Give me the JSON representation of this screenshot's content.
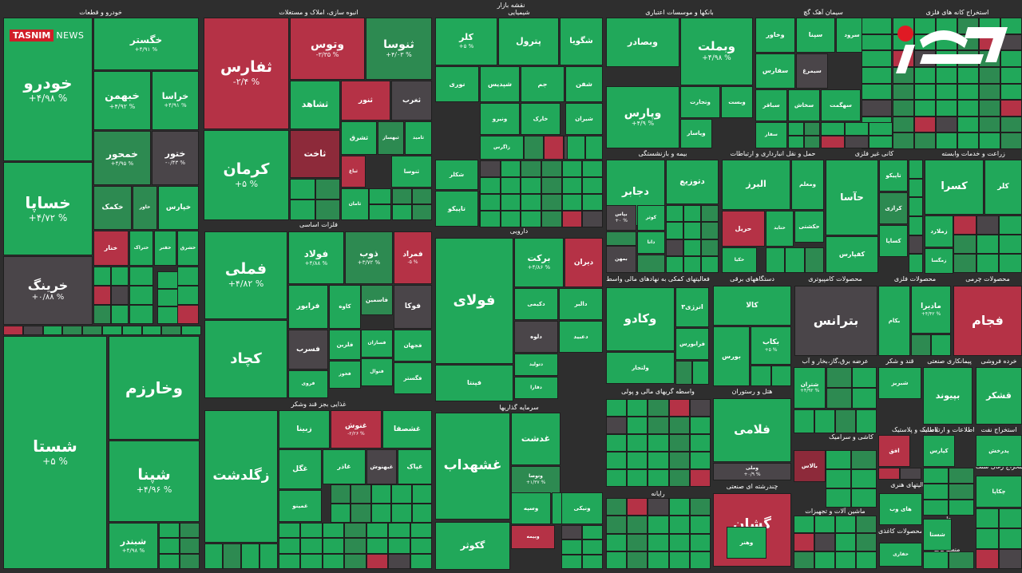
{
  "page_title": "نقشه بازار",
  "brand": {
    "tasnim_a": "TASNIM",
    "tasnim_b": "NEWS",
    "rokna": "رکنا"
  },
  "colors": {
    "green": "#21a85a",
    "green_dark": "#2d8a51",
    "green_light": "#2fc46a",
    "red": "#b53246",
    "red_dark": "#8d2a3a",
    "gray": "#4a4549",
    "bg": "#2e2e2e"
  },
  "chart_data": {
    "type": "treemap",
    "sectors": [
      {
        "name": "خودرو و قطعات"
      },
      {
        "name": "انبوه سازی، املاک و مستغلات"
      },
      {
        "name": "شیمیایی"
      },
      {
        "name": "بانکها و موسسات اعتباری"
      },
      {
        "name": "سیمان آهک گچ"
      },
      {
        "name": "استخراج کانه های فلزی"
      },
      {
        "name": "فرآورده های نفتی"
      },
      {
        "name": "فلزات اساسی"
      },
      {
        "name": "دارویی"
      },
      {
        "name": "بیمه و بازنشستگی"
      },
      {
        "name": "حمل و نقل انبارداری و ارتباطات"
      },
      {
        "name": "کانی غیر فلزی"
      },
      {
        "name": "زراعت و خدمات وابسته"
      },
      {
        "name": "فعالیتهای کمکی به نهادهای مالی واسط"
      },
      {
        "name": "دستگاههای برقی"
      },
      {
        "name": "محصولات کامپیوتری"
      },
      {
        "name": "محصولات فلزی"
      },
      {
        "name": "محصولات چرمی"
      },
      {
        "name": "غذایی بجز قند وشکر"
      },
      {
        "name": "سرمایه گذاریها"
      },
      {
        "name": "واسطه گریهای مالی و پولی"
      },
      {
        "name": "هتل و رستوران"
      },
      {
        "name": "عرضه برق،گاز،بخار و آب"
      },
      {
        "name": "قند و شکر"
      },
      {
        "name": "پیمانکاری صنعتی"
      },
      {
        "name": "خرده فروشی"
      },
      {
        "name": "کاشی و سرامیک"
      },
      {
        "name": "لاستیک و پلاستیک"
      },
      {
        "name": "اطلاعات و ارتباطات"
      },
      {
        "name": "استخراج نفت"
      },
      {
        "name": "رایانه"
      },
      {
        "name": "چندرشته ای صنعتی"
      },
      {
        "name": "ماشین آلات و تجهیزات"
      },
      {
        "name": "فعالیتهای هنری"
      },
      {
        "name": "محصولات کاغذی"
      },
      {
        "name": "منسوجات"
      },
      {
        "name": "استخراج زغال سنگ"
      },
      {
        "name": "سایر"
      },
      {
        "name": "چاپ"
      },
      {
        "name": "فنی و"
      },
      {
        "name": "سایر"
      }
    ],
    "stocks": [
      {
        "symbol": "خودرو",
        "change": "+۴/۹۸ %",
        "color": "green"
      },
      {
        "symbol": "خساپا",
        "change": "+۴/۷۲ %",
        "color": "green"
      },
      {
        "symbol": "خرینگ",
        "change": "+۰/۸۸ %",
        "color": "gray"
      },
      {
        "symbol": "خگستر",
        "change": "+۴/۹۱ %",
        "color": "green"
      },
      {
        "symbol": "خبهمن",
        "change": "+۴/۹۲ %",
        "color": "green"
      },
      {
        "symbol": "خراسا",
        "change": "+۴/۹۱ %",
        "color": "green"
      },
      {
        "symbol": "خمحور",
        "change": "+۴/۹۵ %",
        "color": "green_dark"
      },
      {
        "symbol": "ختور",
        "change": "-۰/۴۳ %",
        "color": "gray"
      },
      {
        "symbol": "خکمک",
        "change": "",
        "color": "green_dark"
      },
      {
        "symbol": "خاور",
        "change": "",
        "color": "green_dark"
      },
      {
        "symbol": "خپارس",
        "change": "",
        "color": "green"
      },
      {
        "symbol": "خنار",
        "change": "",
        "color": "red"
      },
      {
        "symbol": "ختراک",
        "change": "",
        "color": "green"
      },
      {
        "symbol": "خفنر",
        "change": "",
        "color": "green"
      },
      {
        "symbol": "خشرق",
        "change": "",
        "color": "green"
      },
      {
        "symbol": "ثفارس",
        "change": "-۲/۴ %",
        "color": "red"
      },
      {
        "symbol": "کرمان",
        "change": "+۵ %",
        "color": "green"
      },
      {
        "symbol": "وتوس",
        "change": "-۳/۳۵ %",
        "color": "red"
      },
      {
        "symbol": "ثنوسا",
        "change": "+۴/۰۳ %",
        "color": "green_dark"
      },
      {
        "symbol": "ثشاهد",
        "change": "",
        "color": "green"
      },
      {
        "symbol": "ثنور",
        "change": "",
        "color": "red"
      },
      {
        "symbol": "ثغرب",
        "change": "",
        "color": "gray"
      },
      {
        "symbol": "ثشرق",
        "change": "",
        "color": "green"
      },
      {
        "symbol": "ثاخت",
        "change": "",
        "color": "red_dark"
      },
      {
        "symbol": "ثبهساز",
        "change": "",
        "color": "green_dark"
      },
      {
        "symbol": "ثامید",
        "change": "",
        "color": "green"
      },
      {
        "symbol": "ثنوسا",
        "change": "",
        "color": "green"
      },
      {
        "symbol": "ثباغ",
        "change": "",
        "color": "red"
      },
      {
        "symbol": "ثامان",
        "change": "",
        "color": "green"
      },
      {
        "symbol": "کلر",
        "change": "+۵ %",
        "color": "green"
      },
      {
        "symbol": "پترول",
        "change": "",
        "color": "green"
      },
      {
        "symbol": "شگویا",
        "change": "",
        "color": "green"
      },
      {
        "symbol": "نوری",
        "change": "",
        "color": "green"
      },
      {
        "symbol": "شپدیس",
        "change": "",
        "color": "green"
      },
      {
        "symbol": "جم",
        "change": "",
        "color": "green"
      },
      {
        "symbol": "شفن",
        "change": "",
        "color": "green"
      },
      {
        "symbol": "ونیرو",
        "change": "",
        "color": "green"
      },
      {
        "symbol": "خارک",
        "change": "",
        "color": "green"
      },
      {
        "symbol": "شیران",
        "change": "",
        "color": "green"
      },
      {
        "symbol": "زاگرس",
        "change": "",
        "color": "green"
      },
      {
        "symbol": "شاراک",
        "change": "",
        "color": "green"
      },
      {
        "symbol": "شکلر",
        "change": "",
        "color": "green"
      },
      {
        "symbol": "تاپیکو",
        "change": "",
        "color": "green"
      },
      {
        "symbol": "پارسان",
        "change": "",
        "color": "green"
      },
      {
        "symbol": "وبصادر",
        "change": "",
        "color": "green"
      },
      {
        "symbol": "وبملت",
        "change": "+۴/۹۸ %",
        "color": "green"
      },
      {
        "symbol": "وپارس",
        "change": "+۴/۹ %",
        "color": "green"
      },
      {
        "symbol": "وتجارت",
        "change": "",
        "color": "green"
      },
      {
        "symbol": "وبست",
        "change": "",
        "color": "green"
      },
      {
        "symbol": "وپاسار",
        "change": "",
        "color": "green"
      },
      {
        "symbol": "وخاور",
        "change": "",
        "color": "green"
      },
      {
        "symbol": "سپنا",
        "change": "",
        "color": "green"
      },
      {
        "symbol": "سرود",
        "change": "",
        "color": "green"
      },
      {
        "symbol": "سفارس",
        "change": "",
        "color": "green"
      },
      {
        "symbol": "سیمرغ",
        "change": "",
        "color": "gray"
      },
      {
        "symbol": "سباقر",
        "change": "",
        "color": "green"
      },
      {
        "symbol": "سخاش",
        "change": "",
        "color": "green"
      },
      {
        "symbol": "سهگمت",
        "change": "",
        "color": "green"
      },
      {
        "symbol": "سفار",
        "change": "",
        "color": "green"
      },
      {
        "symbol": "کچاد",
        "change": "",
        "color": "green"
      },
      {
        "symbol": "فملی",
        "change": "+۴/۸۲ %",
        "color": "green"
      },
      {
        "symbol": "فولاد",
        "change": "+۴/۸۸ %",
        "color": "green"
      },
      {
        "symbol": "ذوب",
        "change": "+۳/۷۲ %",
        "color": "green_dark"
      },
      {
        "symbol": "فمراد",
        "change": "-۵ %",
        "color": "red"
      },
      {
        "symbol": "فرابور",
        "change": "",
        "color": "green"
      },
      {
        "symbol": "کاوه",
        "change": "",
        "color": "green"
      },
      {
        "symbol": "فلزین",
        "change": "",
        "color": "green"
      },
      {
        "symbol": "فخوز",
        "change": "",
        "color": "green"
      },
      {
        "symbol": "فسرب",
        "change": "",
        "color": "gray"
      },
      {
        "symbol": "فروی",
        "change": "",
        "color": "green"
      },
      {
        "symbol": "فسازان",
        "change": "",
        "color": "green"
      },
      {
        "symbol": "فجهان",
        "change": "",
        "color": "green"
      },
      {
        "symbol": "فاسمین",
        "change": "",
        "color": "green_dark"
      },
      {
        "symbol": "فوکا",
        "change": "",
        "color": "gray"
      },
      {
        "symbol": "فنوال",
        "change": "",
        "color": "green"
      },
      {
        "symbol": "فگستر",
        "change": "",
        "color": "green"
      },
      {
        "symbol": "فولای",
        "change": "",
        "color": "green"
      },
      {
        "symbol": "فپنتا",
        "change": "",
        "color": "green"
      },
      {
        "symbol": "برکت",
        "change": "+۴/۸۶ %",
        "color": "green"
      },
      {
        "symbol": "دیران",
        "change": "",
        "color": "red"
      },
      {
        "symbol": "دکیمی",
        "change": "",
        "color": "green"
      },
      {
        "symbol": "دلوه",
        "change": "",
        "color": "gray"
      },
      {
        "symbol": "دالبر",
        "change": "",
        "color": "green"
      },
      {
        "symbol": "دعبید",
        "change": "",
        "color": "green"
      },
      {
        "symbol": "دتولید",
        "change": "",
        "color": "green"
      },
      {
        "symbol": "دفارا",
        "change": "",
        "color": "green"
      },
      {
        "symbol": "دجابر",
        "change": "",
        "color": "green"
      },
      {
        "symbol": "دتوزیع",
        "change": "",
        "color": "green"
      },
      {
        "symbol": "بپاس",
        "change": "+۰ %",
        "color": "gray"
      },
      {
        "symbol": "کوثر",
        "change": "",
        "color": "green"
      },
      {
        "symbol": "دانا",
        "change": "",
        "color": "green"
      },
      {
        "symbol": "بمهن",
        "change": "",
        "color": "gray"
      },
      {
        "symbol": "البرز",
        "change": "",
        "color": "green"
      },
      {
        "symbol": "ومعلم",
        "change": "",
        "color": "green"
      },
      {
        "symbol": "حریل",
        "change": "",
        "color": "red"
      },
      {
        "symbol": "حتاید",
        "change": "",
        "color": "green"
      },
      {
        "symbol": "حکشتی",
        "change": "",
        "color": "green"
      },
      {
        "symbol": "حکیا",
        "change": "",
        "color": "green"
      },
      {
        "symbol": "حآسا",
        "change": "",
        "color": "green"
      },
      {
        "symbol": "تاپیکو",
        "change": "",
        "color": "green"
      },
      {
        "symbol": "کرازی",
        "change": "",
        "color": "green_dark"
      },
      {
        "symbol": "کساپا",
        "change": "",
        "color": "green"
      },
      {
        "symbol": "کفپارس",
        "change": "",
        "color": "green"
      },
      {
        "symbol": "کسرا",
        "change": "",
        "color": "green"
      },
      {
        "symbol": "کلر",
        "change": "",
        "color": "green"
      },
      {
        "symbol": "زملارد",
        "change": "",
        "color": "green"
      },
      {
        "symbol": "زمگسا",
        "change": "",
        "color": "green"
      },
      {
        "symbol": "زگلدشت",
        "change": "",
        "color": "green"
      },
      {
        "symbol": "زبینا",
        "change": "",
        "color": "green"
      },
      {
        "symbol": "غنوش",
        "change": "-۲/۲۶ %",
        "color": "red"
      },
      {
        "symbol": "غشصفا",
        "change": "",
        "color": "green"
      },
      {
        "symbol": "غگل",
        "change": "",
        "color": "green"
      },
      {
        "symbol": "غاذر",
        "change": "",
        "color": "green"
      },
      {
        "symbol": "غبهنوش",
        "change": "",
        "color": "gray"
      },
      {
        "symbol": "غپاک",
        "change": "",
        "color": "green"
      },
      {
        "symbol": "غمینو",
        "change": "",
        "color": "green"
      },
      {
        "symbol": "غشهداب",
        "change": "",
        "color": "green"
      },
      {
        "symbol": "غدشت",
        "change": "",
        "color": "green"
      },
      {
        "symbol": "وتوصا",
        "change": "+۱/۳۷ %",
        "color": "green_dark"
      },
      {
        "symbol": "وصنا",
        "change": "",
        "color": "green"
      },
      {
        "symbol": "وسپه",
        "change": "",
        "color": "green"
      },
      {
        "symbol": "ونیکی",
        "change": "",
        "color": "green"
      },
      {
        "symbol": "وبیمه",
        "change": "",
        "color": "red"
      },
      {
        "symbol": "وکادو",
        "change": "",
        "color": "green"
      },
      {
        "symbol": "ولتجار",
        "change": "",
        "color": "green"
      },
      {
        "symbol": "انرژی۳",
        "change": "",
        "color": "green"
      },
      {
        "symbol": "فرابورس",
        "change": "",
        "color": "green"
      },
      {
        "symbol": "کالا",
        "change": "",
        "color": "green"
      },
      {
        "symbol": "بورس",
        "change": "",
        "color": "green"
      },
      {
        "symbol": "بکاب",
        "change": "+۵ %",
        "color": "green"
      },
      {
        "symbol": "بترانس",
        "change": "",
        "color": "gray"
      },
      {
        "symbol": "بکام",
        "change": "",
        "color": "green"
      },
      {
        "symbol": "مادیرا",
        "change": "+۴/۴۲ %",
        "color": "green"
      },
      {
        "symbol": "فجام",
        "change": "",
        "color": "red"
      },
      {
        "symbol": "فلامی",
        "change": "",
        "color": "green"
      },
      {
        "symbol": "وملی",
        "change": "+۰/۹ %",
        "color": "gray"
      },
      {
        "symbol": "گشان",
        "change": "-۲ %",
        "color": "red"
      },
      {
        "symbol": "گکوثر",
        "change": "",
        "color": "green"
      },
      {
        "symbol": "شستا",
        "change": "+۵ %",
        "color": "green"
      },
      {
        "symbol": "وخارزم",
        "change": "",
        "color": "green"
      },
      {
        "symbol": "شپنا",
        "change": "+۴/۹۶ %",
        "color": "green"
      },
      {
        "symbol": "شبندر",
        "change": "+۴/۹۸ %",
        "color": "green"
      },
      {
        "symbol": "شتران",
        "change": "+۴/۹۲ %",
        "color": "green"
      },
      {
        "symbol": "شبریز",
        "change": "",
        "color": "green"
      },
      {
        "symbol": "بپیوند",
        "change": "",
        "color": "green"
      },
      {
        "symbol": "قشکر",
        "change": "",
        "color": "green"
      },
      {
        "symbol": "بالاس",
        "change": "",
        "color": "red_dark"
      },
      {
        "symbol": "افق",
        "change": "",
        "color": "red"
      },
      {
        "symbol": "کپارس",
        "change": "",
        "color": "green"
      },
      {
        "symbol": "پدرخش",
        "change": "",
        "color": "green"
      },
      {
        "symbol": "های وب",
        "change": "",
        "color": "green"
      },
      {
        "symbol": "حفاری",
        "change": "",
        "color": "green"
      },
      {
        "symbol": "وهنر",
        "change": "",
        "color": "green"
      },
      {
        "symbol": "چکاپا",
        "change": "",
        "color": "green"
      },
      {
        "symbol": "شستا",
        "change": "",
        "color": "green"
      },
      {
        "symbol": "فنورد",
        "change": "",
        "color": "green"
      },
      {
        "symbol": "بیاتا",
        "change": "",
        "color": "green"
      }
    ]
  }
}
